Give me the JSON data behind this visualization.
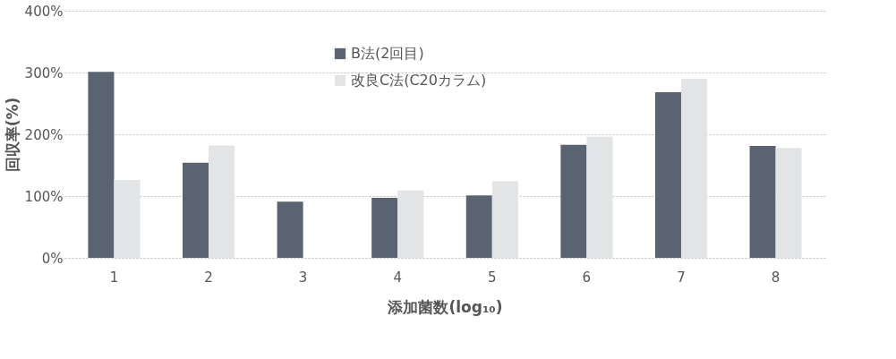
{
  "chart_data": {
    "type": "bar",
    "xlabel": "添加菌数(log₁₀)",
    "ylabel": "回収率(%)",
    "categories": [
      "1",
      "2",
      "3",
      "4",
      "5",
      "6",
      "7",
      "8"
    ],
    "series": [
      {
        "name": "B法(2回目)",
        "color": "#5a6470",
        "values": [
          301,
          154,
          91,
          97,
          101,
          183,
          268,
          181
        ]
      },
      {
        "name": "改良C法(C20カラム)",
        "color": "#e2e4e6",
        "values": [
          126,
          182,
          null,
          109,
          124,
          196,
          290,
          178
        ]
      }
    ],
    "ylim": [
      0,
      400
    ],
    "yticks": [
      {
        "value": 0,
        "label": "0%"
      },
      {
        "value": 100,
        "label": "100%"
      },
      {
        "value": 200,
        "label": "200%"
      },
      {
        "value": 300,
        "label": "300%"
      },
      {
        "value": 400,
        "label": "400%"
      }
    ],
    "grid": "y",
    "legend": "top"
  }
}
